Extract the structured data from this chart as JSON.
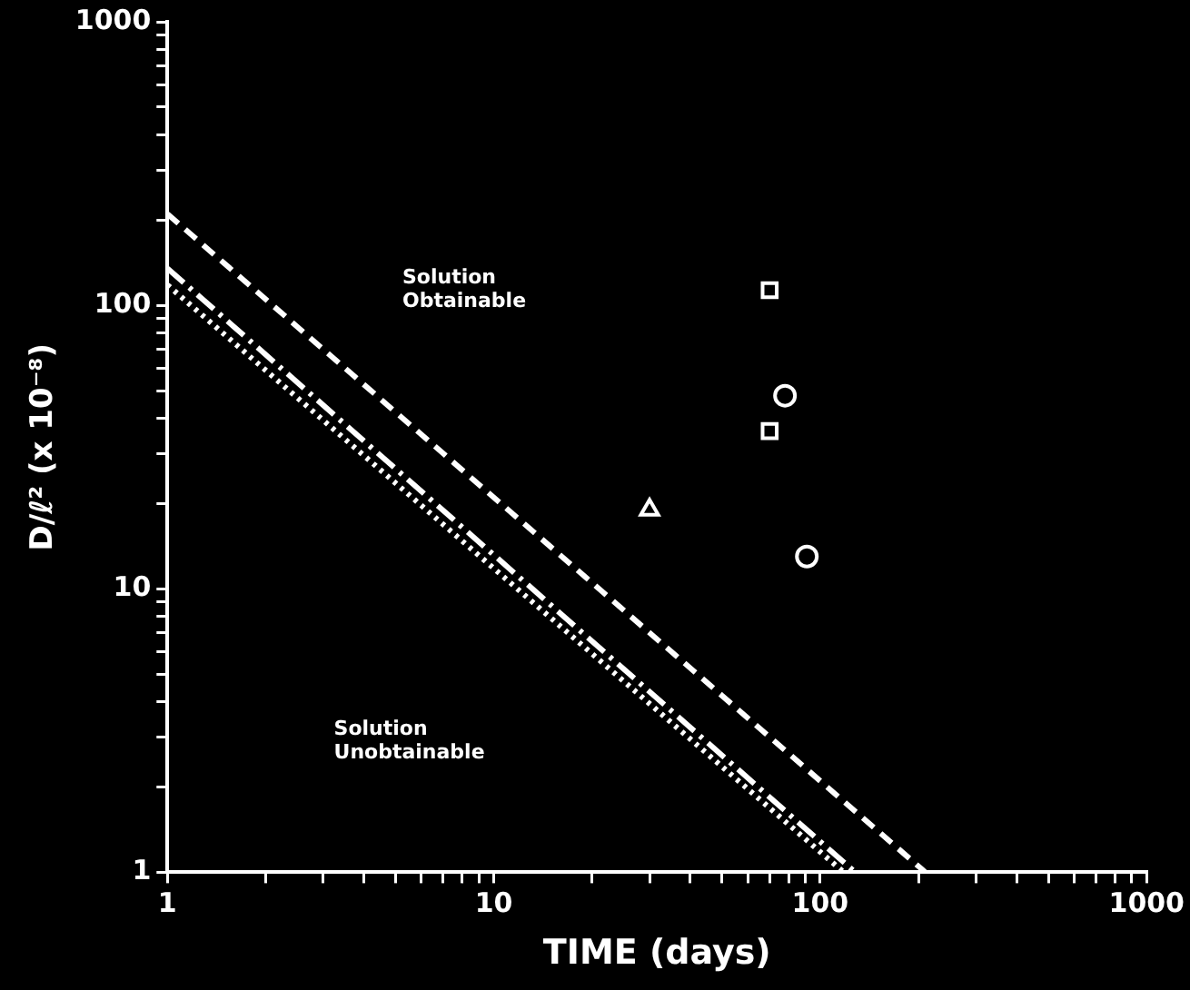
{
  "chart_data": {
    "type": "scatter",
    "xlabel": "TIME (days)",
    "ylabel": "D/ℓ² (x 10⁻⁸)",
    "log": "xy",
    "grid": false,
    "legend": false,
    "xlim": [
      1,
      1000
    ],
    "ylim": [
      1,
      1000
    ],
    "xticks": [
      1,
      {
        "value": 2,
        "label": null
      },
      {
        "value": 3,
        "label": null
      },
      {
        "value": 4,
        "label": null
      },
      {
        "value": 5,
        "label": null
      },
      {
        "value": 6,
        "label": null
      },
      {
        "value": 7,
        "label": null
      },
      {
        "value": 8,
        "label": null
      },
      {
        "value": 9,
        "label": null
      },
      10,
      {
        "value": 20,
        "label": null
      },
      {
        "value": 30,
        "label": null
      },
      {
        "value": 40,
        "label": null
      },
      {
        "value": 50,
        "label": null
      },
      {
        "value": 60,
        "label": null
      },
      {
        "value": 70,
        "label": null
      },
      {
        "value": 80,
        "label": null
      },
      {
        "value": 90,
        "label": null
      },
      100,
      {
        "value": 200,
        "label": null
      },
      {
        "value": 300,
        "label": null
      },
      {
        "value": 400,
        "label": null
      },
      {
        "value": 500,
        "label": null
      },
      {
        "value": 600,
        "label": null
      },
      {
        "value": 700,
        "label": null
      },
      {
        "value": 800,
        "label": null
      },
      {
        "value": 900,
        "label": null
      },
      1000
    ],
    "yticks": [
      1,
      {
        "value": 2,
        "label": null
      },
      {
        "value": 3,
        "label": null
      },
      {
        "value": 4,
        "label": null
      },
      {
        "value": 5,
        "label": null
      },
      {
        "value": 6,
        "label": null
      },
      {
        "value": 7,
        "label": null
      },
      {
        "value": 8,
        "label": null
      },
      {
        "value": 9,
        "label": null
      },
      10,
      {
        "value": 20,
        "label": null
      },
      {
        "value": 30,
        "label": null
      },
      {
        "value": 40,
        "label": null
      },
      {
        "value": 50,
        "label": null
      },
      {
        "value": 60,
        "label": null
      },
      {
        "value": 70,
        "label": null
      },
      {
        "value": 80,
        "label": null
      },
      {
        "value": 90,
        "label": null
      },
      100,
      {
        "value": 200,
        "label": null
      },
      {
        "value": 300,
        "label": null
      },
      {
        "value": 400,
        "label": null
      },
      {
        "value": 500,
        "label": null
      },
      {
        "value": 600,
        "label": null
      },
      {
        "value": 700,
        "label": null
      },
      {
        "value": 800,
        "label": null
      },
      {
        "value": 900,
        "label": null
      },
      1000
    ],
    "series": [
      {
        "type": "line",
        "line_style": "dashed",
        "color": "#ffffff",
        "x": [
          1,
          210
        ],
        "values": [
          210,
          1
        ]
      },
      {
        "type": "line",
        "line_style": "dashdot",
        "color": "#ffffff",
        "x": [
          1,
          128
        ],
        "values": [
          135,
          1
        ]
      },
      {
        "type": "line",
        "line_style": "dotted",
        "color": "#ffffff",
        "x": [
          1,
          118
        ],
        "values": [
          118,
          1
        ]
      },
      {
        "marker": "square",
        "color": "#ffffff",
        "x": [
          70
        ],
        "values": [
          113
        ]
      },
      {
        "marker": "circle",
        "color": "#ffffff",
        "x": [
          78
        ],
        "values": [
          48
        ]
      },
      {
        "marker": "square",
        "color": "#ffffff",
        "x": [
          70
        ],
        "values": [
          36
        ]
      },
      {
        "marker": "triangle",
        "color": "#ffffff",
        "x": [
          30
        ],
        "values": [
          19
        ]
      },
      {
        "marker": "circle",
        "color": "#ffffff",
        "x": [
          91
        ],
        "values": [
          13
        ]
      }
    ],
    "annotations": [
      "Solution\nObtainable",
      "Solution\nUnobtainable"
    ]
  }
}
